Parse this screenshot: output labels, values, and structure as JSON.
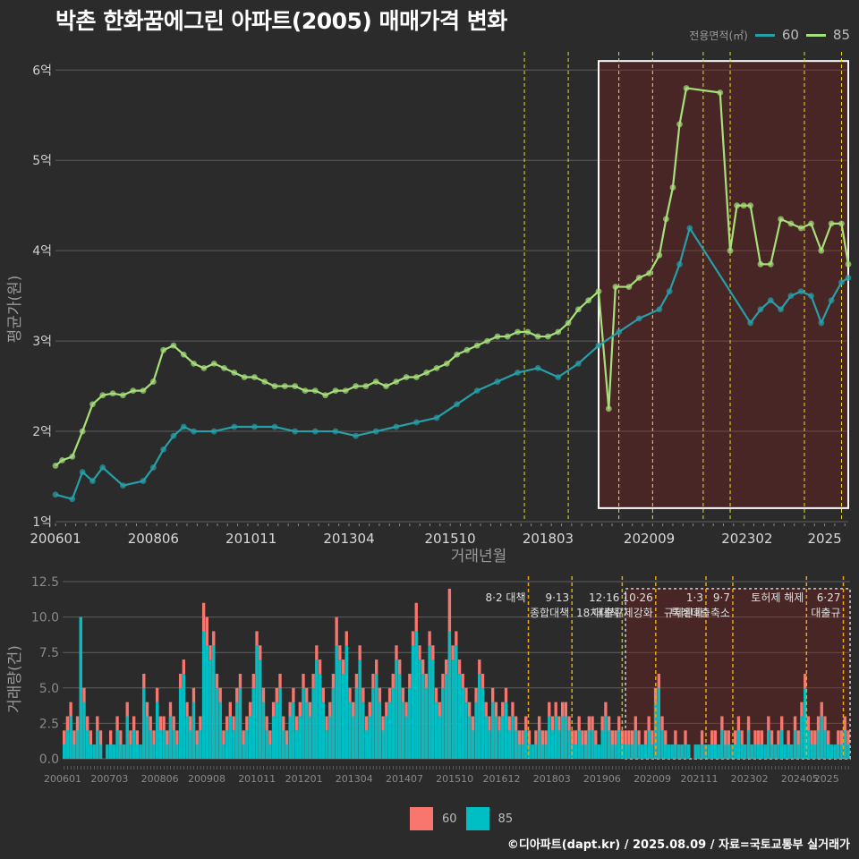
{
  "title": "박촌 한화꿈에그린 아파트(2005) 매매가격 변화",
  "credit": "©디아파트(dapt.kr) / 2025.08.09 / 자료=국토교통부 실거래가",
  "legend_top": {
    "title": "전용면적(㎡)",
    "items": [
      {
        "label": "60",
        "color": "#26a0a8"
      },
      {
        "label": "85",
        "color": "#a6e07a"
      }
    ]
  },
  "legend_bottom": {
    "items": [
      {
        "label": "60",
        "color": "#f8766d"
      },
      {
        "label": "85",
        "color": "#00bfc4"
      }
    ]
  },
  "chart_data": [
    {
      "type": "line",
      "ylabel": "평균가(원)",
      "xlabel": "거래년월",
      "ylim": [
        1.0,
        6.3
      ],
      "y_ticks": [
        "1억",
        "2억",
        "3억",
        "4억",
        "5억",
        "6억"
      ],
      "x_ticks": [
        "200601",
        "200806",
        "201011",
        "201304",
        "201510",
        "201803",
        "202009",
        "202302",
        "2025"
      ],
      "x_range": [
        "2006-01",
        "2025-08"
      ],
      "highlight_box": {
        "from": "2019-06",
        "to": "2025-08",
        "ymin": 1.15,
        "ymax": 6.1
      },
      "policy_lines": [
        "2017-08",
        "2018-09",
        "2019-12",
        "2020-10",
        "2022-01",
        "2022-09",
        "2024-07",
        "2025-06"
      ],
      "series": [
        {
          "name": "85",
          "color": "#a6e07a",
          "points": [
            [
              "2006-01",
              1.62
            ],
            [
              "2006-03",
              1.68
            ],
            [
              "2006-06",
              1.72
            ],
            [
              "2006-09",
              2.0
            ],
            [
              "2006-12",
              2.3
            ],
            [
              "2007-03",
              2.4
            ],
            [
              "2007-06",
              2.42
            ],
            [
              "2007-09",
              2.4
            ],
            [
              "2007-12",
              2.45
            ],
            [
              "2008-03",
              2.45
            ],
            [
              "2008-06",
              2.55
            ],
            [
              "2008-09",
              2.9
            ],
            [
              "2008-12",
              2.95
            ],
            [
              "2009-03",
              2.85
            ],
            [
              "2009-06",
              2.75
            ],
            [
              "2009-09",
              2.7
            ],
            [
              "2009-12",
              2.75
            ],
            [
              "2010-03",
              2.7
            ],
            [
              "2010-06",
              2.65
            ],
            [
              "2010-09",
              2.6
            ],
            [
              "2010-12",
              2.6
            ],
            [
              "2011-03",
              2.55
            ],
            [
              "2011-06",
              2.5
            ],
            [
              "2011-09",
              2.5
            ],
            [
              "2011-12",
              2.5
            ],
            [
              "2012-03",
              2.45
            ],
            [
              "2012-06",
              2.45
            ],
            [
              "2012-09",
              2.4
            ],
            [
              "2012-12",
              2.45
            ],
            [
              "2013-03",
              2.45
            ],
            [
              "2013-06",
              2.5
            ],
            [
              "2013-09",
              2.5
            ],
            [
              "2013-12",
              2.55
            ],
            [
              "2014-03",
              2.5
            ],
            [
              "2014-06",
              2.55
            ],
            [
              "2014-09",
              2.6
            ],
            [
              "2014-12",
              2.6
            ],
            [
              "2015-03",
              2.65
            ],
            [
              "2015-06",
              2.7
            ],
            [
              "2015-09",
              2.75
            ],
            [
              "2015-12",
              2.85
            ],
            [
              "2016-03",
              2.9
            ],
            [
              "2016-06",
              2.95
            ],
            [
              "2016-09",
              3.0
            ],
            [
              "2016-12",
              3.05
            ],
            [
              "2017-03",
              3.05
            ],
            [
              "2017-06",
              3.1
            ],
            [
              "2017-09",
              3.1
            ],
            [
              "2017-12",
              3.05
            ],
            [
              "2018-03",
              3.05
            ],
            [
              "2018-06",
              3.1
            ],
            [
              "2018-09",
              3.2
            ],
            [
              "2018-12",
              3.35
            ],
            [
              "2019-03",
              3.45
            ],
            [
              "2019-06",
              3.55
            ],
            [
              "2019-09",
              2.25
            ],
            [
              "2019-11",
              3.6
            ],
            [
              "2020-03",
              3.6
            ],
            [
              "2020-06",
              3.7
            ],
            [
              "2020-09",
              3.75
            ],
            [
              "2020-12",
              3.95
            ],
            [
              "2021-02",
              4.35
            ],
            [
              "2021-04",
              4.7
            ],
            [
              "2021-06",
              5.4
            ],
            [
              "2021-08",
              5.8
            ],
            [
              "2022-06",
              5.75
            ],
            [
              "2022-09",
              4.0
            ],
            [
              "2022-11",
              4.5
            ],
            [
              "2023-01",
              4.5
            ],
            [
              "2023-03",
              4.5
            ],
            [
              "2023-06",
              3.85
            ],
            [
              "2023-09",
              3.85
            ],
            [
              "2023-12",
              4.35
            ],
            [
              "2024-03",
              4.3
            ],
            [
              "2024-06",
              4.25
            ],
            [
              "2024-09",
              4.3
            ],
            [
              "2024-12",
              4.0
            ],
            [
              "2025-03",
              4.3
            ],
            [
              "2025-06",
              4.3
            ],
            [
              "2025-08",
              3.85
            ]
          ]
        },
        {
          "name": "60",
          "color": "#26a0a8",
          "points": [
            [
              "2006-01",
              1.3
            ],
            [
              "2006-06",
              1.25
            ],
            [
              "2006-09",
              1.55
            ],
            [
              "2006-12",
              1.45
            ],
            [
              "2007-03",
              1.6
            ],
            [
              "2007-09",
              1.4
            ],
            [
              "2008-03",
              1.45
            ],
            [
              "2008-06",
              1.6
            ],
            [
              "2008-09",
              1.8
            ],
            [
              "2008-12",
              1.95
            ],
            [
              "2009-03",
              2.05
            ],
            [
              "2009-06",
              2.0
            ],
            [
              "2009-12",
              2.0
            ],
            [
              "2010-06",
              2.05
            ],
            [
              "2010-12",
              2.05
            ],
            [
              "2011-06",
              2.05
            ],
            [
              "2011-12",
              2.0
            ],
            [
              "2012-06",
              2.0
            ],
            [
              "2012-12",
              2.0
            ],
            [
              "2013-06",
              1.95
            ],
            [
              "2013-12",
              2.0
            ],
            [
              "2014-06",
              2.05
            ],
            [
              "2014-12",
              2.1
            ],
            [
              "2015-06",
              2.15
            ],
            [
              "2015-12",
              2.3
            ],
            [
              "2016-06",
              2.45
            ],
            [
              "2016-12",
              2.55
            ],
            [
              "2017-06",
              2.65
            ],
            [
              "2017-12",
              2.7
            ],
            [
              "2018-06",
              2.6
            ],
            [
              "2018-12",
              2.75
            ],
            [
              "2019-06",
              2.95
            ],
            [
              "2019-12",
              3.1
            ],
            [
              "2020-06",
              3.25
            ],
            [
              "2020-12",
              3.35
            ],
            [
              "2021-03",
              3.55
            ],
            [
              "2021-06",
              3.85
            ],
            [
              "2021-09",
              4.25
            ],
            [
              "2023-03",
              3.2
            ],
            [
              "2023-06",
              3.35
            ],
            [
              "2023-09",
              3.45
            ],
            [
              "2023-12",
              3.35
            ],
            [
              "2024-03",
              3.5
            ],
            [
              "2024-06",
              3.55
            ],
            [
              "2024-09",
              3.5
            ],
            [
              "2024-12",
              3.2
            ],
            [
              "2025-03",
              3.45
            ],
            [
              "2025-06",
              3.65
            ],
            [
              "2025-08",
              3.7
            ]
          ]
        }
      ]
    },
    {
      "type": "bar",
      "ylabel": "거래량(건)",
      "ylim": [
        0,
        12.5
      ],
      "y_ticks": [
        "0.0",
        "2.5",
        "5.0",
        "7.5",
        "10.0",
        "12.5"
      ],
      "x_ticks": [
        "200601",
        "200703",
        "200806",
        "200908",
        "201011",
        "201201",
        "201304",
        "201407",
        "201510",
        "201612",
        "201803",
        "201906",
        "202009",
        "202111",
        "202302",
        "202405",
        "2025"
      ],
      "annotations": [
        {
          "at": "2017-08",
          "lines": [
            "8·2 대책"
          ]
        },
        {
          "at": "2018-09",
          "lines": [
            "9·13",
            "종합대책"
          ]
        },
        {
          "at": "2019-12",
          "lines": [
            "12·16",
            "18차대책"
          ]
        },
        {
          "at": "2020-10",
          "lines": [
            "10·26",
            "대출규제강화"
          ]
        },
        {
          "at": "2022-01",
          "lines": [
            "1·3",
            "규제완화"
          ]
        },
        {
          "at": "2022-09",
          "lines": [
            "9·7",
            "특례대출축소"
          ]
        },
        {
          "at": "2024-07",
          "lines": [
            "토허제 해제"
          ]
        },
        {
          "at": "2025-06",
          "lines": [
            "6·27",
            "대출규"
          ]
        }
      ],
      "series": [
        {
          "name": "60",
          "color": "#f8766d",
          "values": [
            2,
            3,
            4,
            2,
            3,
            10,
            5,
            3,
            2,
            1,
            3,
            2,
            0,
            1,
            2,
            1,
            3,
            2,
            1,
            4,
            2,
            3,
            2,
            1,
            6,
            4,
            3,
            2,
            5,
            3,
            3,
            2,
            4,
            3,
            2,
            6,
            7,
            4,
            3,
            5,
            2,
            3,
            11,
            10,
            8,
            9,
            6,
            5,
            2,
            3,
            4,
            3,
            5,
            6,
            2,
            3,
            4,
            6,
            9,
            8,
            5,
            3,
            2,
            4,
            5,
            6,
            3,
            2,
            4,
            5,
            3,
            4,
            6,
            5,
            4,
            6,
            8,
            7,
            5,
            3,
            4,
            6,
            10,
            8,
            7,
            9,
            5,
            4,
            6,
            8,
            5,
            3,
            4,
            6,
            7,
            5,
            3,
            4,
            5,
            6,
            8,
            7,
            5,
            4,
            6,
            9,
            11,
            8,
            7,
            6,
            9,
            8,
            5,
            4,
            6,
            7,
            12,
            8,
            9,
            7,
            6,
            5,
            4,
            3,
            5,
            7,
            6,
            4,
            3,
            5,
            4,
            3,
            4,
            5,
            3,
            4,
            3,
            2,
            2,
            3,
            2,
            1,
            2,
            3,
            2,
            2,
            4,
            3,
            4,
            3,
            4,
            4,
            3,
            2,
            2,
            3,
            2,
            2,
            3,
            3,
            2,
            1,
            3,
            4,
            3,
            2,
            2,
            3,
            2,
            2,
            2,
            2,
            3,
            2,
            1,
            2,
            3,
            2,
            5,
            6,
            3,
            2,
            1,
            1,
            2,
            1,
            1,
            2,
            1,
            0,
            1,
            1,
            2,
            1,
            1,
            2,
            2,
            1,
            3,
            2,
            2,
            1,
            2,
            3,
            2,
            1,
            3,
            1,
            2,
            2,
            2,
            1,
            3,
            2,
            1,
            2,
            3,
            1,
            2,
            1,
            3,
            2,
            4,
            6,
            3,
            2,
            2,
            3,
            4,
            3,
            2,
            1,
            1,
            2,
            2,
            3,
            2
          ]
        },
        {
          "name": "85",
          "color": "#00bfc4",
          "values": [
            1,
            2,
            3,
            1,
            2,
            10,
            4,
            2,
            1,
            1,
            2,
            1,
            0,
            1,
            1,
            1,
            2,
            1,
            1,
            3,
            1,
            2,
            1,
            1,
            5,
            3,
            2,
            1,
            4,
            2,
            2,
            1,
            3,
            2,
            1,
            5,
            6,
            3,
            2,
            4,
            1,
            2,
            9,
            8,
            7,
            8,
            5,
            4,
            1,
            2,
            3,
            2,
            4,
            5,
            1,
            2,
            3,
            5,
            8,
            7,
            4,
            2,
            1,
            3,
            4,
            5,
            2,
            1,
            3,
            4,
            2,
            3,
            5,
            4,
            3,
            5,
            7,
            6,
            4,
            2,
            3,
            5,
            8,
            7,
            6,
            8,
            4,
            3,
            5,
            7,
            4,
            2,
            3,
            5,
            6,
            4,
            2,
            3,
            4,
            5,
            7,
            6,
            4,
            3,
            5,
            8,
            9,
            7,
            6,
            5,
            8,
            7,
            4,
            3,
            5,
            6,
            9,
            7,
            8,
            6,
            5,
            4,
            3,
            2,
            4,
            6,
            5,
            3,
            2,
            4,
            3,
            2,
            3,
            4,
            2,
            3,
            2,
            1,
            1,
            2,
            1,
            1,
            1,
            2,
            1,
            1,
            3,
            2,
            3,
            2,
            3,
            3,
            2,
            1,
            1,
            2,
            1,
            1,
            2,
            2,
            1,
            1,
            2,
            3,
            2,
            1,
            1,
            2,
            1,
            1,
            1,
            1,
            2,
            1,
            1,
            1,
            2,
            1,
            4,
            5,
            2,
            1,
            1,
            1,
            1,
            1,
            1,
            1,
            1,
            0,
            1,
            1,
            1,
            1,
            1,
            1,
            1,
            1,
            2,
            1,
            1,
            1,
            1,
            2,
            1,
            1,
            2,
            1,
            1,
            1,
            1,
            1,
            2,
            1,
            1,
            1,
            2,
            1,
            1,
            1,
            2,
            1,
            3,
            5,
            2,
            1,
            1,
            2,
            3,
            2,
            1,
            1,
            1,
            1,
            1,
            2,
            1
          ]
        }
      ]
    }
  ]
}
